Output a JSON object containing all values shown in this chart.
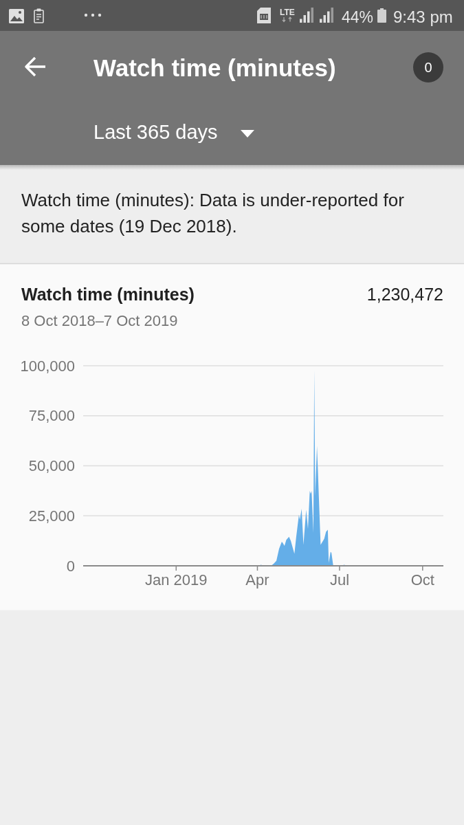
{
  "chart_data": {
    "type": "area",
    "title": "Watch time (minutes)",
    "subtitle": "8 Oct 2018–7 Oct 2019",
    "annotations": [
      "LTE",
      "44%",
      "9:43 pm",
      "Watch time (minutes)",
      "0",
      "Last 365 days",
      "Watch time (minutes): Data is under-reported for some dates (19 Dec 2018).",
      "1,230,472"
    ],
    "x": [
      "2018-10-08",
      "2019-04-02",
      "2019-04-05",
      "2019-04-08",
      "2019-04-16",
      "2019-04-19",
      "2019-04-22",
      "2019-04-25",
      "2019-04-28",
      "2019-04-29",
      "2019-05-01",
      "2019-05-03",
      "2019-05-06",
      "2019-05-08",
      "2019-05-12",
      "2019-05-14",
      "2019-05-17",
      "2019-05-18",
      "2019-05-20",
      "2019-05-22",
      "2019-05-25",
      "2019-05-27",
      "2019-05-29",
      "2019-05-30",
      "2019-05-31",
      "2019-06-02",
      "2019-06-03",
      "2019-06-04",
      "2019-06-06",
      "2019-06-10",
      "2019-06-14",
      "2019-06-16",
      "2019-06-18",
      "2019-06-19",
      "2019-06-21",
      "2019-06-22",
      "2019-06-24",
      "2019-07-03",
      "2019-07-06",
      "2019-07-10",
      "2019-10-07"
    ],
    "values": [
      0,
      0,
      500,
      0,
      0,
      1000,
      2500,
      8500,
      12000,
      11500,
      10000,
      13000,
      14500,
      12500,
      6000,
      14500,
      25500,
      23000,
      28500,
      10500,
      28000,
      18500,
      37500,
      36000,
      37500,
      16500,
      98000,
      35000,
      60000,
      10500,
      13500,
      17000,
      18000,
      1500,
      7000,
      6500,
      0,
      0,
      500,
      0,
      0
    ],
    "color": "#64aee8",
    "xlim": [
      "2018-09-20",
      "2019-10-24"
    ],
    "xticks": [
      {
        "value": "2019-01-01",
        "label": "Jan 2019"
      },
      {
        "value": "2019-04-01",
        "label": "Apr"
      },
      {
        "value": "2019-07-01",
        "label": "Jul"
      },
      {
        "value": "2019-10-01",
        "label": "Oct"
      }
    ],
    "ylim": [
      0,
      100000
    ],
    "yticks": [
      0,
      {
        "value": 25000,
        "label": "25,000"
      },
      {
        "value": 50000,
        "label": "50,000"
      },
      {
        "value": 75000,
        "label": "75,000"
      },
      {
        "value": 100000,
        "label": "100,000"
      }
    ],
    "grid": "y"
  }
}
